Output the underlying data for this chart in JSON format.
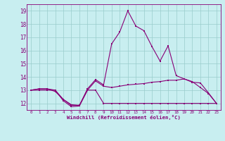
{
  "xlabel": "Windchill (Refroidissement éolien,°C)",
  "background_color": "#c8eef0",
  "grid_color": "#99cccc",
  "line_color": "#880077",
  "x_values": [
    0,
    1,
    2,
    3,
    4,
    5,
    6,
    7,
    8,
    9,
    10,
    11,
    12,
    13,
    14,
    15,
    16,
    17,
    18,
    19,
    20,
    21,
    22,
    23
  ],
  "line1": [
    13.0,
    13.0,
    13.0,
    13.0,
    12.2,
    11.75,
    11.8,
    13.0,
    13.0,
    12.0,
    12.0,
    12.0,
    12.0,
    12.0,
    12.0,
    12.0,
    12.0,
    12.0,
    12.0,
    12.0,
    12.0,
    12.0,
    12.0,
    12.0
  ],
  "line2": [
    13.0,
    13.1,
    13.1,
    12.9,
    12.3,
    11.85,
    11.85,
    13.0,
    13.7,
    13.3,
    13.2,
    13.3,
    13.4,
    13.45,
    13.5,
    13.6,
    13.65,
    13.75,
    13.75,
    13.85,
    13.65,
    13.2,
    12.75,
    12.0
  ],
  "line3": [
    13.0,
    13.1,
    13.1,
    13.0,
    12.3,
    11.9,
    11.85,
    13.1,
    13.8,
    13.4,
    16.5,
    17.4,
    19.0,
    17.85,
    17.5,
    16.3,
    15.2,
    16.35,
    14.1,
    13.85,
    13.6,
    13.55,
    12.8,
    12.0
  ],
  "ylim": [
    11.5,
    19.5
  ],
  "yticks": [
    12,
    13,
    14,
    15,
    16,
    17,
    18,
    19
  ],
  "xlim": [
    -0.5,
    23.5
  ],
  "xticks": [
    0,
    1,
    2,
    3,
    4,
    5,
    6,
    7,
    8,
    9,
    10,
    11,
    12,
    13,
    14,
    15,
    16,
    17,
    18,
    19,
    20,
    21,
    22,
    23
  ]
}
